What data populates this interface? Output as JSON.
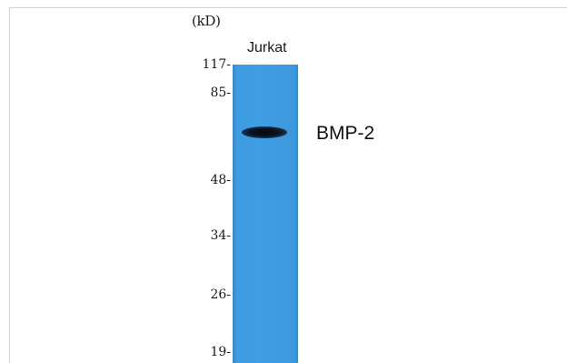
{
  "unit_label": "(kD)",
  "lane_label": "Jurkat",
  "band_label": "BMP-2",
  "markers": [
    "117-",
    "85-",
    "48-",
    "34-",
    "26-",
    "19-"
  ],
  "colors": {
    "membrane": "#3f9de1",
    "band": "#0b1420"
  }
}
